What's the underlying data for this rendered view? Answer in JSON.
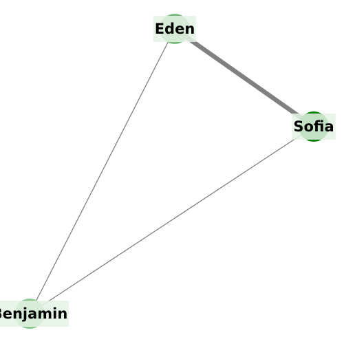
{
  "graph": {
    "nodes": [
      {
        "id": "eden",
        "label": "Eden",
        "color": "#77bb7c",
        "label_bg": "#e5f3e5"
      },
      {
        "id": "sofia",
        "label": "Sofia",
        "color": "#007a00",
        "label_bg": "#e5f3e5"
      },
      {
        "id": "benjamin",
        "label": "Benjamin",
        "color": "#8cc68f",
        "label_bg": "#e5f3e5"
      }
    ],
    "edges": [
      {
        "source": "eden",
        "target": "sofia",
        "weight": 5,
        "color": "#808080"
      },
      {
        "source": "eden",
        "target": "benjamin",
        "weight": 1,
        "color": "#808080"
      },
      {
        "source": "sofia",
        "target": "benjamin",
        "weight": 1,
        "color": "#808080"
      }
    ]
  }
}
